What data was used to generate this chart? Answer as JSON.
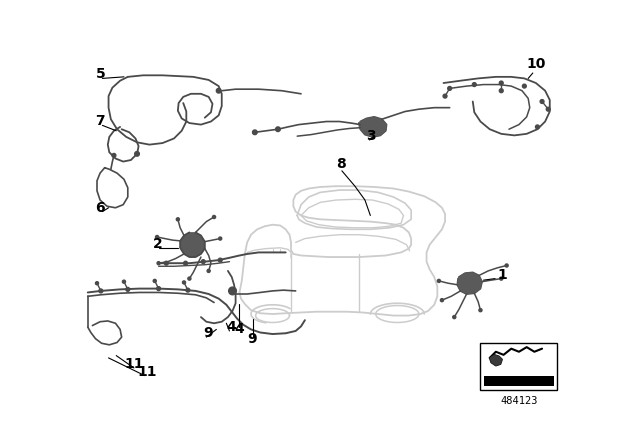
{
  "background_color": "#ffffff",
  "line_color": "#4a4a4a",
  "car_color": "#cccccc",
  "label_color": "#000000",
  "part_number": "484123",
  "figsize": [
    6.4,
    4.48
  ],
  "dpi": 100
}
